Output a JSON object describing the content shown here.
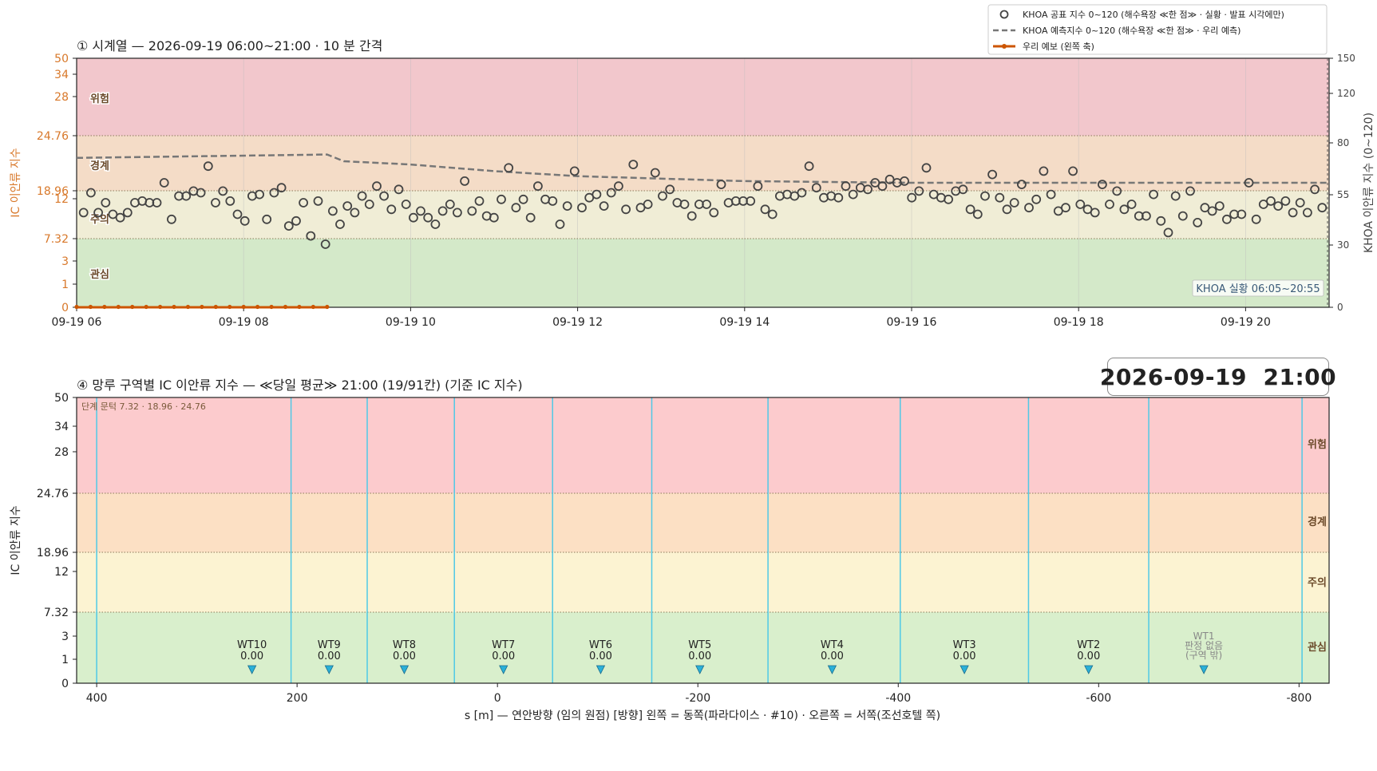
{
  "chart_data": [
    {
      "type": "scatter",
      "title": "① 시계열 — 2026-09-19 06:00~21:00 · 10 분 간격",
      "ylabel": "IC 이안류 지수",
      "y2label": "KHOA 이안류 지수 (0~120)",
      "y_ticks": [
        "0",
        "1",
        "3",
        "7.32",
        "12",
        "18.96",
        "24.76",
        "28",
        "34",
        "50"
      ],
      "y2_ticks": [
        "0",
        "30",
        "55",
        "80",
        "120",
        "150"
      ],
      "y2lim": [
        0,
        150
      ],
      "x_ticks": [
        "09-19 06",
        "09-19 08",
        "09-19 10",
        "09-19 12",
        "09-19 14",
        "09-19 16",
        "09-19 18",
        "09-19 20"
      ],
      "xlim_hours": [
        6,
        21
      ],
      "zones": [
        {
          "label": "관심",
          "color": "#d4e9c9"
        },
        {
          "label": "주의",
          "color": "#f0edd6"
        },
        {
          "label": "경계",
          "color": "#f4dcc7"
        },
        {
          "label": "위험",
          "color": "#f2c7cc"
        }
      ],
      "legend_placement": "top-right",
      "legend": [
        "KHOA 공표 지수 0~120 (해수욕장 ≪한 점≫ · 실황 · 발표 시각에만)",
        "KHOA 예측지수 0~120 (해수욕장 ≪한 점≫ · 우리 예측)",
        "우리 예보 (왼쪽 축)"
      ],
      "annotation": "KHOA 실황 06:05~20:55",
      "series": [
        {
          "name": "KHOA 공표 지수 0~120 (해수욕장 ≪한 점≫ · 실황 · 발표 시각에만)",
          "axis": "right",
          "values": [
            57,
            69,
            57,
            63,
            56,
            54,
            57,
            63,
            64,
            63,
            63,
            75,
            53,
            67,
            67,
            70,
            69,
            85,
            63,
            70,
            64,
            56,
            52,
            67,
            68,
            53,
            69,
            72,
            49,
            52,
            63,
            43,
            64,
            38,
            58,
            50,
            61,
            57,
            67,
            62,
            73,
            67,
            59,
            71,
            62,
            54,
            58,
            54,
            50,
            58,
            62,
            57,
            76,
            58,
            64,
            55,
            54,
            65,
            84,
            60,
            65,
            54,
            73,
            65,
            64,
            50,
            61,
            82,
            60,
            66,
            68,
            61,
            69,
            73,
            59,
            86,
            60,
            62,
            81,
            67,
            71,
            63,
            62,
            55,
            62,
            62,
            57,
            74,
            63,
            64,
            64,
            64,
            73,
            59,
            56,
            67,
            68,
            67,
            69,
            85,
            72,
            66,
            67,
            66,
            73,
            68,
            72,
            71,
            75,
            73,
            77,
            75,
            76,
            66,
            70,
            84,
            68,
            66,
            65,
            70,
            71,
            59,
            56,
            67,
            80,
            66,
            59,
            63,
            74,
            60,
            65,
            82,
            68,
            58,
            60,
            82,
            62,
            59,
            57,
            74,
            62,
            70,
            59,
            62,
            55,
            55,
            68,
            52,
            45,
            67,
            55,
            70,
            51,
            60,
            58,
            61,
            53,
            56,
            56,
            75,
            53,
            62,
            64,
            61,
            64,
            57,
            63,
            57,
            71,
            60
          ],
          "note": "approx. one point every 5 minutes from 06:05 to 20:55"
        },
        {
          "name": "KHOA 예측지수 0~120 (해수욕장 ≪한 점≫ · 우리 예측)",
          "axis": "right",
          "points": [
            [
              6.0,
              90
            ],
            [
              9.0,
              92
            ],
            [
              9.2,
              88
            ],
            [
              10.0,
              86
            ],
            [
              11.0,
              82
            ],
            [
              12.0,
              79
            ],
            [
              14.0,
              76
            ],
            [
              16.0,
              75
            ],
            [
              18.0,
              75
            ],
            [
              20.0,
              75
            ],
            [
              21.0,
              75
            ]
          ]
        },
        {
          "name": "우리 예보 (왼쪽 축)",
          "axis": "left",
          "x_range_hours": [
            6.0,
            9.0
          ],
          "value": 0
        }
      ]
    },
    {
      "type": "bar",
      "title": "④ 망루 구역별 IC 이안류 지수 — ≪당일 평균≫ 21:00  (19/91칸)   (기준 IC 지수)",
      "ylabel": "IC 이안류 지수",
      "xlabel": "s [m] — 연안방향 (임의 원점)     [방향] 왼쪽 = 동쪽(파라다이스 · #10) · 오른쪽 = 서쪽(조선호텔 쪽)",
      "y_ticks": [
        "0",
        "1",
        "3",
        "7.32",
        "12",
        "18.96",
        "24.76",
        "28",
        "34",
        "50"
      ],
      "x_ticks": [
        "400",
        "200",
        "0",
        "-200",
        "-400",
        "-600",
        "-800"
      ],
      "xlim": [
        420,
        -830
      ],
      "x_reversed": true,
      "zones": [
        {
          "label": "관심",
          "color": "#d9efcc"
        },
        {
          "label": "주의",
          "color": "#fcf3d2"
        },
        {
          "label": "경계",
          "color": "#fce0c4"
        },
        {
          "label": "위험",
          "color": "#fccbcd"
        }
      ],
      "threshold_note": "단계 문턱 7.32 · 18.96 · 24.76",
      "boundaries": [
        400,
        206,
        130,
        43,
        -55,
        -154,
        -270,
        -402,
        -530,
        -650,
        -803
      ],
      "towers": [
        {
          "name": "WT10",
          "value": "0.00",
          "s": 245
        },
        {
          "name": "WT9",
          "value": "0.00",
          "s": 168
        },
        {
          "name": "WT8",
          "value": "0.00",
          "s": 93
        },
        {
          "name": "WT7",
          "value": "0.00",
          "s": -6
        },
        {
          "name": "WT6",
          "value": "0.00",
          "s": -103
        },
        {
          "name": "WT5",
          "value": "0.00",
          "s": -202
        },
        {
          "name": "WT4",
          "value": "0.00",
          "s": -334
        },
        {
          "name": "WT3",
          "value": "0.00",
          "s": -466
        },
        {
          "name": "WT2",
          "value": "0.00",
          "s": -590
        },
        {
          "name": "WT1",
          "value": "판정 없음",
          "note": "(구역 밖)",
          "s": -705
        }
      ]
    }
  ],
  "timestamp": "2026-09-19  21:00",
  "colors": {
    "accent_orange": "#d8782a",
    "forecast_line": "#cc5500",
    "khoa_dash": "#777777",
    "boundary_cyan": "#4fc9e6",
    "tower_marker": "#2ab0d8"
  }
}
